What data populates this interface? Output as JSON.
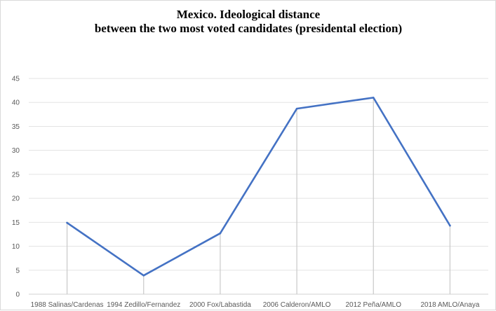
{
  "chart_data": {
    "type": "line",
    "title_lines": [
      "Mexico. Ideological distance",
      "between the two most voted candidates (presidental election)"
    ],
    "categories": [
      "1988 Salinas/Cardenas",
      "1994 Zedillo/Fernandez",
      "2000 Fox/Labastida",
      "2006 Calderon/AMLO",
      "2012 Peña/AMLO",
      "2018 AMLO/Anaya"
    ],
    "series": [
      {
        "values": [
          14.9,
          3.9,
          12.7,
          38.7,
          41.0,
          14.3
        ],
        "color": "#4472c4"
      }
    ],
    "ylim": [
      0,
      45
    ],
    "yticks": [
      0,
      5,
      10,
      15,
      20,
      25,
      30,
      35,
      40,
      45
    ],
    "xlabel": "",
    "ylabel": "",
    "grid": true,
    "drop_lines": true,
    "legend": "none"
  }
}
